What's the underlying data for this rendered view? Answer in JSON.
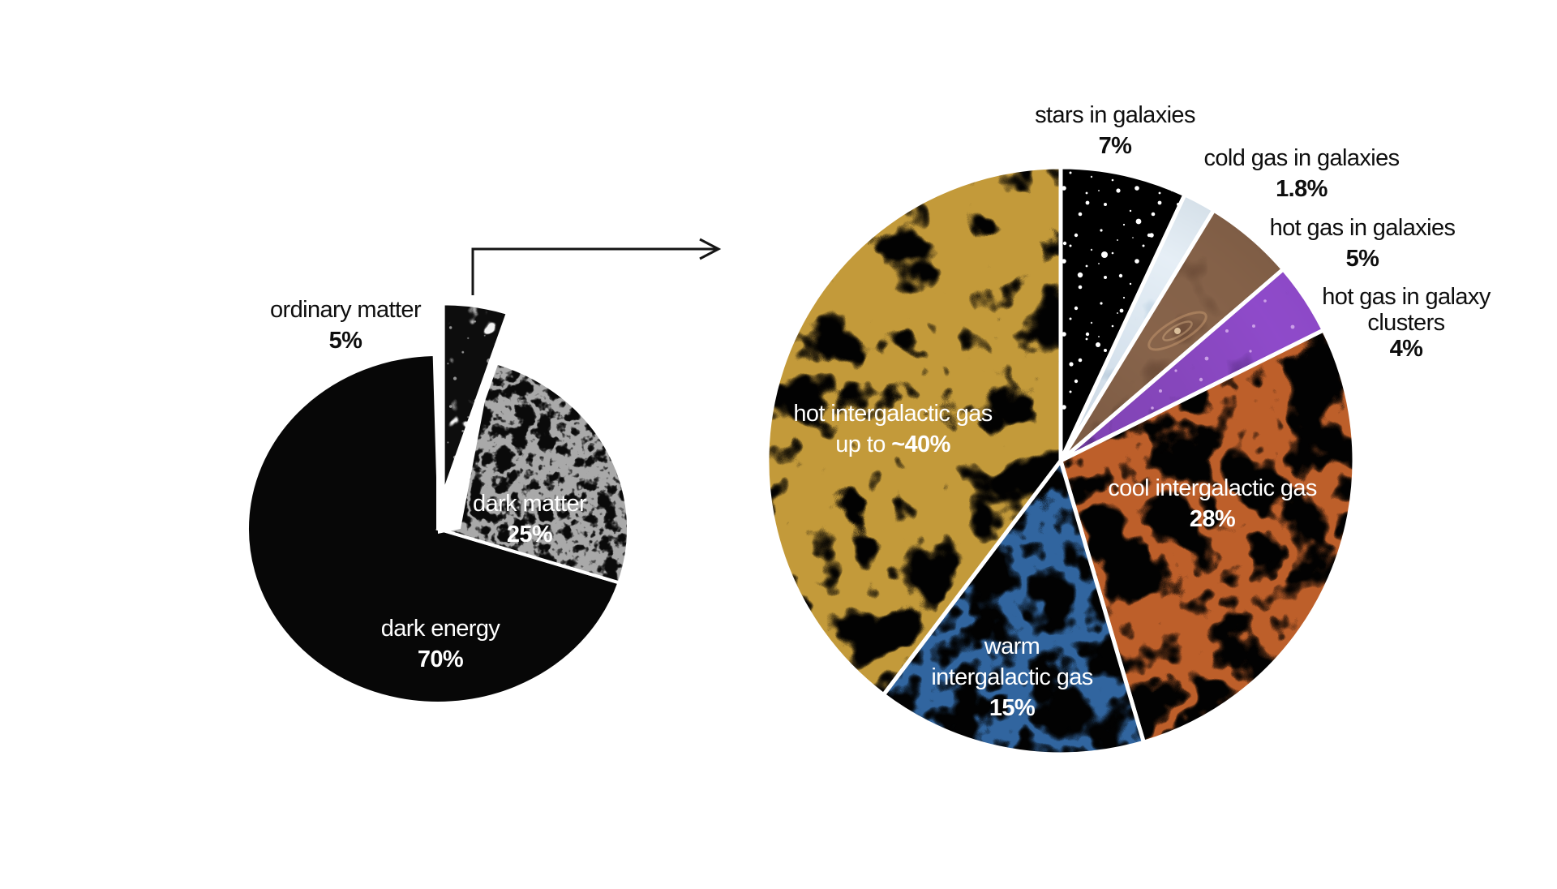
{
  "figure": {
    "kind": "infographic",
    "background": "#ffffff",
    "text_color": "#0e0e0e",
    "inside_label_color": "#ffffff"
  },
  "icons": {
    "connector_arrow": "elbow-right-arrow"
  },
  "chart_data": [
    {
      "type": "pie",
      "name": "content of the universe",
      "start_angle_deg": 0,
      "direction": "clockwise",
      "legend_position": "labels adjacent to slices",
      "slices": [
        {
          "label": "ordinary matter",
          "label_lines": [
            "ordinary matter"
          ],
          "pct_prefix": "",
          "pct_bold": "5%",
          "value": 5,
          "exploded": true,
          "fill": "dark galaxy-field photo texture",
          "color": "#141414",
          "label_color": "#0e0e0e"
        },
        {
          "label": "dark matter",
          "label_lines": [
            "dark matter"
          ],
          "pct_prefix": "",
          "pct_bold": "25%",
          "value": 25,
          "fill": "black with fine white cosmic-web filaments",
          "color": "#0a0a0a",
          "label_color": "#ffffff"
        },
        {
          "label": "dark energy",
          "label_lines": [
            "dark energy"
          ],
          "pct_prefix": "",
          "pct_bold": "70%",
          "value": 70,
          "fill": "solid black",
          "color": "#070707",
          "label_color": "#ffffff"
        }
      ]
    },
    {
      "type": "pie",
      "name": "ordinary matter breakdown",
      "start_angle_deg": 0,
      "direction": "clockwise",
      "legend_position": "labels outside thin slices, inside large slices",
      "slices": [
        {
          "label": "stars in galaxies",
          "label_lines": [
            "stars in galaxies"
          ],
          "pct_prefix": "",
          "pct_bold": "7%",
          "value": 7,
          "fill": "black star field with white stars",
          "color": "#000000",
          "label_color": "#0e0e0e"
        },
        {
          "label": "cold gas in galaxies",
          "label_lines": [
            "cold gas in galaxies"
          ],
          "pct_prefix": "",
          "pct_bold": "1.8%",
          "value": 1.8,
          "fill": "pale blue misty clouds",
          "color": "#a9c7e2",
          "label_color": "#0e0e0e"
        },
        {
          "label": "hot gas in galaxies",
          "label_lines": [
            "hot gas in galaxies"
          ],
          "pct_prefix": "",
          "pct_bold": "5%",
          "value": 5,
          "fill": "smoky brown gas with small spiral galaxy",
          "color": "#5f4332",
          "label_color": "#0e0e0e"
        },
        {
          "label": "hot gas in galaxy clusters",
          "label_lines": [
            "hot gas in galaxy",
            "clusters"
          ],
          "pct_prefix": "",
          "pct_bold": "4%",
          "value": 4,
          "fill": "dark purple cluster gas with faint galaxies",
          "color": "#5e2d8c",
          "label_color": "#0e0e0e"
        },
        {
          "label": "cool intergalactic gas",
          "label_lines": [
            "cool intergalactic gas"
          ],
          "pct_prefix": "",
          "pct_bold": "28%",
          "value": 28,
          "fill": "orange cosmic-web filaments on black",
          "color": "#bd5f2a",
          "label_color": "#ffffff"
        },
        {
          "label": "warm intergalactic gas",
          "label_lines": [
            "warm",
            "intergalactic gas"
          ],
          "pct_prefix": "",
          "pct_bold": "15%",
          "value": 15,
          "fill": "blue cosmic-web filaments on black",
          "color": "#31659f",
          "label_color": "#ffffff"
        },
        {
          "label": "hot intergalactic gas",
          "label_lines": [
            "hot intergalactic gas"
          ],
          "pct_prefix": "up to ",
          "pct_bold": "~40%",
          "value": 40,
          "fill": "gold cosmic-web filaments on black",
          "color": "#c39a3a",
          "label_color": "#ffffff"
        }
      ]
    }
  ]
}
